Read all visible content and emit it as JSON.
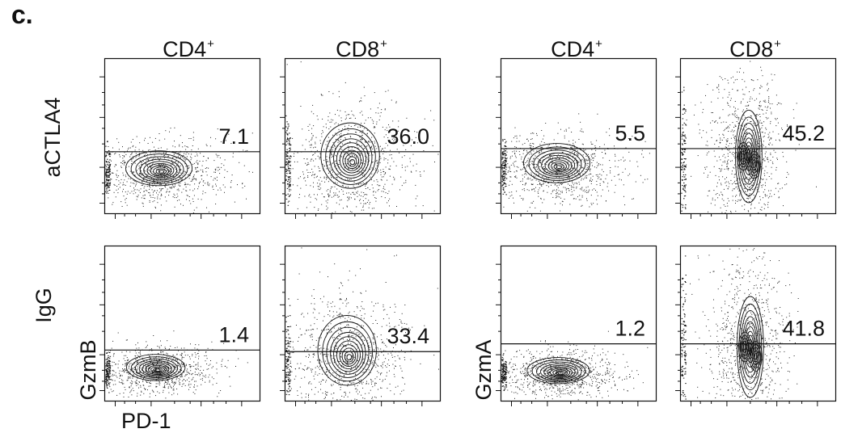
{
  "figure": {
    "panel_label": "c.",
    "x_axis_label": "PD-1",
    "row_labels": [
      "aCTLA4",
      "IgG"
    ],
    "y_axis_labels": [
      "GzmB",
      "GzmA"
    ],
    "col_headers": [
      {
        "base": "CD4",
        "sup": "+"
      },
      {
        "base": "CD8",
        "sup": "+"
      },
      {
        "base": "CD4",
        "sup": "+"
      },
      {
        "base": "CD8",
        "sup": "+"
      }
    ]
  },
  "chart_data": [
    {
      "type": "scatter",
      "cell": "CD4",
      "treatment": "aCTLA4",
      "marker": "GzmB",
      "gate_percent": "7.1",
      "gate_level": 0.4,
      "density_center": [
        0.35,
        0.27
      ],
      "spread": [
        0.17,
        0.08
      ],
      "shape": "single"
    },
    {
      "type": "scatter",
      "cell": "CD8",
      "treatment": "aCTLA4",
      "marker": "GzmB",
      "gate_percent": "36.0",
      "gate_level": 0.4,
      "density_center": [
        0.42,
        0.33
      ],
      "spread": [
        0.15,
        0.15
      ],
      "shape": "single"
    },
    {
      "type": "scatter",
      "cell": "CD4",
      "treatment": "aCTLA4",
      "marker": "GzmA",
      "gate_percent": "5.5",
      "gate_level": 0.42,
      "density_center": [
        0.36,
        0.3
      ],
      "spread": [
        0.17,
        0.09
      ],
      "shape": "single"
    },
    {
      "type": "scatter",
      "cell": "CD8",
      "treatment": "aCTLA4",
      "marker": "GzmA",
      "gate_percent": "45.2",
      "gate_level": 0.42,
      "density_center": [
        0.42,
        0.37
      ],
      "spread": [
        0.1,
        0.22
      ],
      "shape": "dual"
    },
    {
      "type": "scatter",
      "cell": "CD4",
      "treatment": "IgG",
      "marker": "GzmB",
      "gate_percent": "1.4",
      "gate_level": 0.33,
      "density_center": [
        0.33,
        0.2
      ],
      "spread": [
        0.15,
        0.06
      ],
      "shape": "single"
    },
    {
      "type": "scatter",
      "cell": "CD8",
      "treatment": "IgG",
      "marker": "GzmB",
      "gate_percent": "33.4",
      "gate_level": 0.32,
      "density_center": [
        0.4,
        0.28
      ],
      "spread": [
        0.15,
        0.16
      ],
      "shape": "single"
    },
    {
      "type": "scatter",
      "cell": "CD4",
      "treatment": "IgG",
      "marker": "GzmA",
      "gate_percent": "1.2",
      "gate_level": 0.37,
      "density_center": [
        0.37,
        0.18
      ],
      "spread": [
        0.16,
        0.06
      ],
      "shape": "single"
    },
    {
      "type": "scatter",
      "cell": "CD8",
      "treatment": "IgG",
      "marker": "GzmA",
      "gate_percent": "41.8",
      "gate_level": 0.37,
      "density_center": [
        0.43,
        0.35
      ],
      "spread": [
        0.1,
        0.24
      ],
      "shape": "dual"
    }
  ]
}
